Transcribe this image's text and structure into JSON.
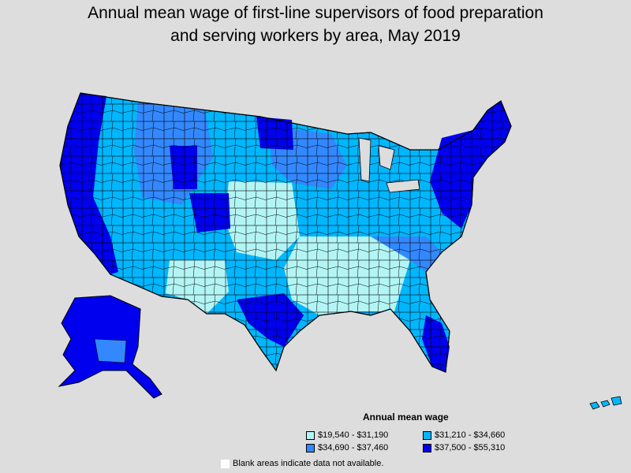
{
  "title_lines": [
    "Annual mean wage of first-line supervisors of food preparation",
    "and serving workers by area, May 2019"
  ],
  "legend": {
    "title": "Annual mean wage",
    "items": [
      {
        "label": "$19,540 - $31,190",
        "color": "#b3f5f5"
      },
      {
        "label": "$31,210 - $34,660",
        "color": "#00b7ff"
      },
      {
        "label": "$34,690 - $37,460",
        "color": "#3388ff"
      },
      {
        "label": "$37,500 - $55,310",
        "color": "#0000ee"
      }
    ]
  },
  "note": "Blank areas indicate data not available."
}
